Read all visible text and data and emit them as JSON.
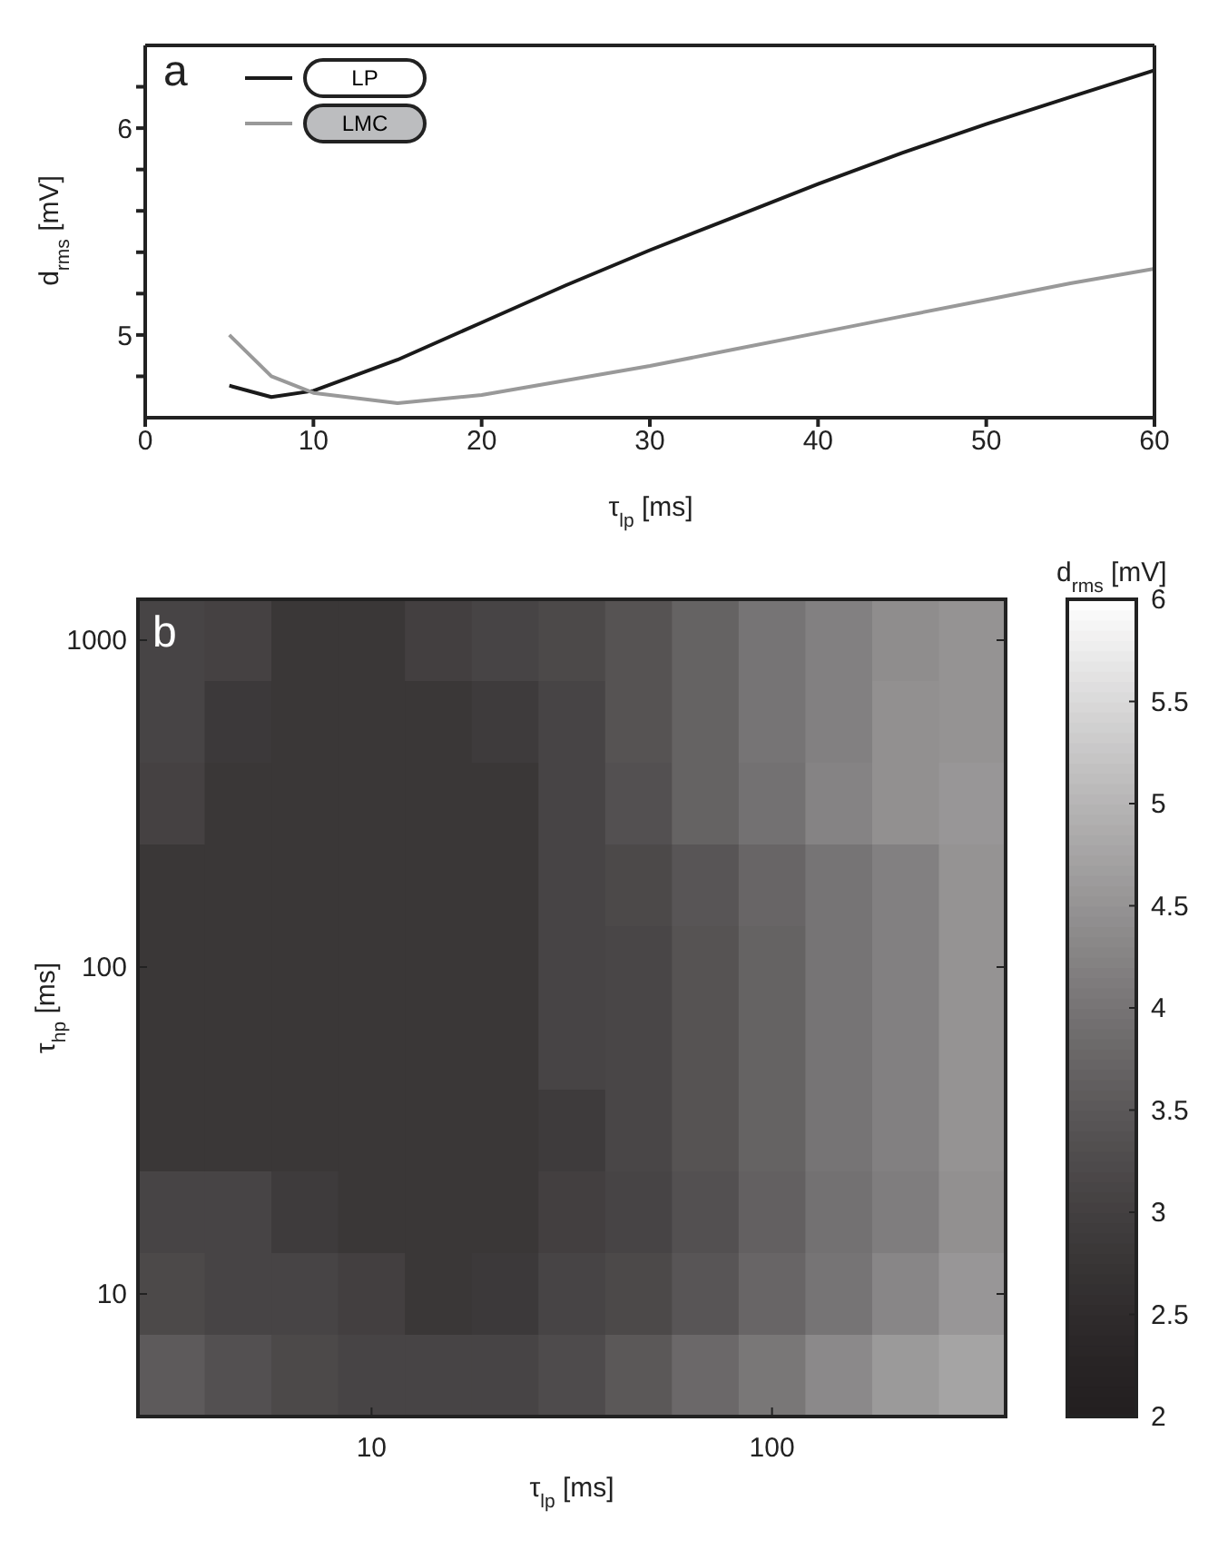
{
  "chart_data": [
    {
      "type": "line",
      "title": "a",
      "xlabel": "τ$_{lp}$ [ms]",
      "ylabel": "d$_{rms}$ [mV]",
      "x": [
        5,
        7.5,
        10,
        15,
        20,
        25,
        30,
        35,
        40,
        45,
        50,
        55,
        60
      ],
      "series": [
        {
          "name": "LP",
          "color": "#1a1a1a",
          "values": [
            4.755,
            4.7,
            4.73,
            4.88,
            5.06,
            5.24,
            5.41,
            5.57,
            5.73,
            5.88,
            6.02,
            6.15,
            6.28
          ]
        },
        {
          "name": "LMC",
          "color": "#999999",
          "values": [
            5.0,
            4.8,
            4.72,
            4.67,
            4.71,
            4.78,
            4.85,
            4.93,
            5.01,
            5.09,
            5.17,
            5.25,
            5.32
          ]
        }
      ],
      "xlim": [
        0,
        60
      ],
      "xticks": [
        0,
        10,
        20,
        30,
        40,
        50,
        60
      ],
      "ylim": [
        4.6,
        6.4
      ],
      "yticks": [
        {
          "value": 4.8,
          "label": null
        },
        5,
        {
          "value": 5.2,
          "label": null
        },
        {
          "value": 5.4,
          "label": null
        },
        {
          "value": 5.6,
          "label": null
        },
        {
          "value": 5.8,
          "label": null
        },
        6,
        {
          "value": 6.2,
          "label": null
        }
      ],
      "legend": "top left",
      "marker": "none",
      "line_style": "solid"
    },
    {
      "type": "heatmap",
      "title": "b",
      "xlabel": "τ$_{lp}$ [ms]",
      "ylabel": "τ$_{hp}$ [ms]",
      "clabel": "d$_{rms}$ [mV]",
      "categories": [
        null,
        null,
        null,
        "10",
        null,
        null,
        null,
        null,
        null,
        "100",
        null,
        null,
        null
      ],
      "y_categories": [
        "1000",
        null,
        null,
        null,
        "100",
        null,
        null,
        null,
        "10",
        null
      ],
      "cells": [
        [
          3.1,
          3.05,
          2.8,
          2.8,
          3.0,
          3.1,
          3.2,
          3.4,
          3.7,
          4.0,
          4.2,
          4.4,
          4.5
        ],
        [
          3.1,
          2.85,
          2.8,
          2.8,
          2.8,
          2.9,
          3.1,
          3.4,
          3.7,
          4.0,
          4.2,
          4.45,
          4.5
        ],
        [
          3.05,
          2.8,
          2.8,
          2.8,
          2.8,
          2.8,
          3.1,
          3.35,
          3.7,
          3.95,
          4.25,
          4.45,
          4.55
        ],
        [
          2.8,
          2.8,
          2.8,
          2.8,
          2.8,
          2.8,
          3.1,
          3.2,
          3.45,
          3.75,
          4.0,
          4.2,
          4.5
        ],
        [
          2.8,
          2.8,
          2.8,
          2.8,
          2.8,
          2.8,
          3.1,
          3.15,
          3.4,
          3.7,
          4.0,
          4.2,
          4.5
        ],
        [
          2.8,
          2.8,
          2.8,
          2.8,
          2.8,
          2.8,
          3.1,
          3.15,
          3.4,
          3.7,
          4.0,
          4.2,
          4.5
        ],
        [
          2.8,
          2.8,
          2.8,
          2.8,
          2.8,
          2.8,
          2.9,
          3.15,
          3.4,
          3.7,
          4.0,
          4.2,
          4.5
        ],
        [
          3.1,
          3.1,
          2.9,
          2.8,
          2.8,
          2.8,
          3.0,
          3.1,
          3.35,
          3.65,
          3.95,
          4.15,
          4.45
        ],
        [
          3.2,
          3.1,
          3.1,
          3.0,
          2.8,
          2.85,
          3.1,
          3.2,
          3.45,
          3.75,
          4.0,
          4.3,
          4.55
        ],
        [
          3.55,
          3.35,
          3.2,
          3.1,
          3.1,
          3.1,
          3.25,
          3.5,
          3.8,
          4.05,
          4.35,
          4.6,
          4.75
        ]
      ],
      "clim": [
        2,
        6
      ],
      "cticks": [
        2,
        2.5,
        3,
        3.5,
        4,
        4.5,
        5,
        5.5,
        6
      ]
    }
  ]
}
